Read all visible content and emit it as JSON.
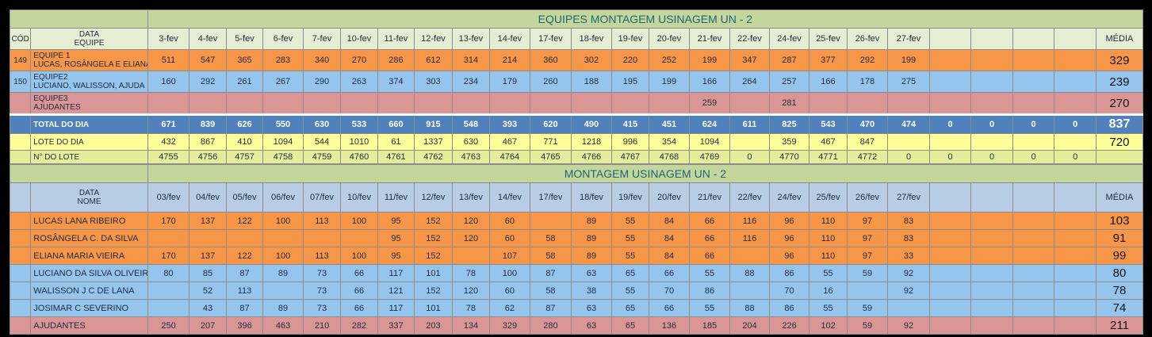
{
  "section1": {
    "title": "EQUIPES MONTAGEM USINAGEM UN - 2",
    "header": {
      "cod": "CÓD",
      "data_label": "DATA",
      "equipe_label": "EQUIPE",
      "media": "MÉDIA"
    },
    "dates": [
      "3-fev",
      "4-fev",
      "5-fev",
      "6-fev",
      "7-fev",
      "10-fev",
      "11-fev",
      "12-fev",
      "13-fev",
      "14-fev",
      "17-fev",
      "18-fev",
      "19-fev",
      "20-fev",
      "21-fev",
      "22-fev",
      "24-fev",
      "25-fev",
      "26-fev",
      "27-fev",
      "",
      "",
      "",
      ""
    ],
    "rows": [
      {
        "cod": "149",
        "line1": "EQUIPE 1",
        "line2": "LUCAS, ROSÂNGELA E ELIANA",
        "values": [
          "511",
          "547",
          "365",
          "283",
          "340",
          "270",
          "286",
          "612",
          "314",
          "214",
          "360",
          "302",
          "220",
          "252",
          "199",
          "347",
          "287",
          "377",
          "292",
          "199",
          "",
          "",
          "",
          ""
        ],
        "media": "329"
      },
      {
        "cod": "150",
        "line1": "EQUIPE2",
        "line2": "LUCIANO, WALISSON, AJUDA",
        "values": [
          "160",
          "292",
          "261",
          "267",
          "290",
          "263",
          "374",
          "303",
          "234",
          "179",
          "260",
          "188",
          "195",
          "199",
          "166",
          "264",
          "257",
          "166",
          "178",
          "275",
          "",
          "",
          "",
          ""
        ],
        "media": "239"
      },
      {
        "cod": "",
        "line1": "EQUIPE3",
        "line2": "AJUDANTES",
        "values": [
          "",
          "",
          "",
          "",
          "",
          "",
          "",
          "",
          "",
          "",
          "",
          "",
          "",
          "",
          "259",
          "",
          "281",
          "",
          "",
          "",
          "",
          "",
          "",
          ""
        ],
        "media": "270"
      }
    ],
    "total": {
      "label": "TOTAL DO DIA",
      "values": [
        "671",
        "839",
        "626",
        "550",
        "630",
        "533",
        "660",
        "915",
        "548",
        "393",
        "620",
        "490",
        "415",
        "451",
        "624",
        "611",
        "825",
        "543",
        "470",
        "474",
        "0",
        "0",
        "0",
        "0"
      ],
      "media": "837"
    },
    "lote": {
      "label": "LOTE DO DIA",
      "values": [
        "432",
        "867",
        "410",
        "1094",
        "544",
        "1010",
        "61",
        "1337",
        "630",
        "467",
        "771",
        "1218",
        "996",
        "354",
        "1094",
        "",
        "359",
        "467",
        "847",
        "",
        "",
        "",
        "",
        ""
      ],
      "media": "720"
    },
    "numlote": {
      "label": "N° DO LOTE",
      "values": [
        "4755",
        "4756",
        "4757",
        "4758",
        "4759",
        "4760",
        "4761",
        "4762",
        "4763",
        "4764",
        "4765",
        "4766",
        "4767",
        "4768",
        "4769",
        "0",
        "4770",
        "4771",
        "4772",
        "0",
        "0",
        "0",
        "0",
        "0"
      ],
      "media": ""
    }
  },
  "section2": {
    "title": "MONTAGEM USINAGEM UN - 2",
    "header": {
      "data_label": "DATA",
      "nome_label": "NOME",
      "media": "MÉDIA"
    },
    "dates": [
      "03/fev",
      "04/fev",
      "05/fev",
      "06/fev",
      "07/fev",
      "10/fev",
      "11/fev",
      "12/fev",
      "13/fev",
      "14/fev",
      "17/fev",
      "18/fev",
      "19/fev",
      "20/fev",
      "21/fev",
      "22/fev",
      "24/fev",
      "25/fev",
      "26/fev",
      "27/fev",
      "",
      "",
      "",
      ""
    ],
    "rows": [
      {
        "name": "LUCAS LANA RIBEIRO",
        "color": "orange",
        "values": [
          "170",
          "137",
          "122",
          "100",
          "113",
          "100",
          "95",
          "152",
          "120",
          "60",
          "",
          "89",
          "55",
          "84",
          "66",
          "116",
          "96",
          "110",
          "97",
          "83",
          "",
          "",
          "",
          ""
        ],
        "media": "103"
      },
      {
        "name": "ROSÂNGELA C. DA SILVA",
        "color": "orange",
        "values": [
          "",
          "",
          "",
          "",
          "",
          "",
          "95",
          "152",
          "120",
          "60",
          "58",
          "89",
          "55",
          "84",
          "66",
          "116",
          "96",
          "110",
          "97",
          "83",
          "",
          "",
          "",
          ""
        ],
        "media": "91"
      },
      {
        "name": "ELIANA MARIA VIEIRA",
        "color": "orange",
        "values": [
          "170",
          "137",
          "122",
          "100",
          "113",
          "100",
          "95",
          "152",
          "",
          "107",
          "58",
          "89",
          "55",
          "84",
          "66",
          "",
          "96",
          "110",
          "97",
          "33",
          "",
          "",
          "",
          ""
        ],
        "media": "99"
      },
      {
        "name": "LUCIANO DA SILVA OLIVEIRA",
        "color": "blue",
        "values": [
          "80",
          "85",
          "87",
          "89",
          "73",
          "66",
          "117",
          "101",
          "78",
          "100",
          "87",
          "63",
          "65",
          "66",
          "55",
          "88",
          "86",
          "55",
          "59",
          "92",
          "",
          "",
          "",
          ""
        ],
        "media": "80"
      },
      {
        "name": "WALISSON J C DE LANA",
        "color": "blue",
        "values": [
          "",
          "52",
          "113",
          "",
          "73",
          "66",
          "121",
          "152",
          "120",
          "60",
          "58",
          "38",
          "55",
          "70",
          "86",
          "",
          "70",
          "16",
          "",
          "92",
          "",
          "",
          "",
          ""
        ],
        "media": "78"
      },
      {
        "name": "JOSIMAR C SEVERINO",
        "color": "blue",
        "values": [
          "",
          "43",
          "87",
          "89",
          "73",
          "66",
          "117",
          "101",
          "78",
          "62",
          "87",
          "63",
          "65",
          "66",
          "55",
          "88",
          "86",
          "55",
          "59",
          "",
          "",
          "",
          "",
          ""
        ],
        "media": "74"
      },
      {
        "name": "AJUDANTES",
        "color": "pink",
        "values": [
          "250",
          "207",
          "396",
          "463",
          "210",
          "282",
          "337",
          "203",
          "134",
          "329",
          "280",
          "63",
          "65",
          "136",
          "185",
          "204",
          "226",
          "102",
          "59",
          "92",
          "",
          "",
          "",
          ""
        ],
        "media": "211"
      }
    ]
  }
}
